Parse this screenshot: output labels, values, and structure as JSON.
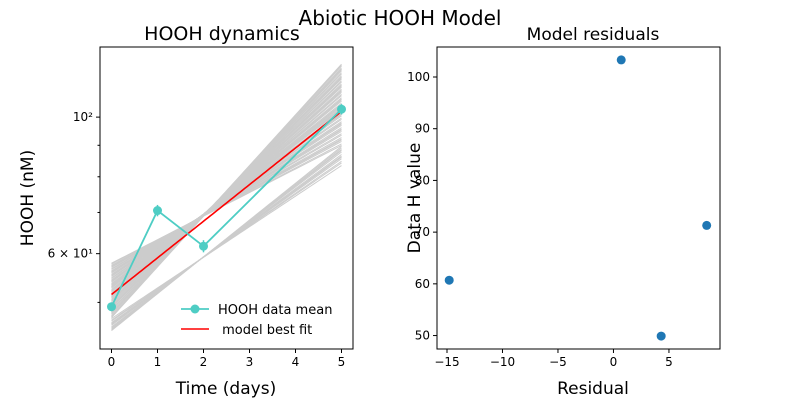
{
  "figure": {
    "suptitle": "Abiotic HOOH Model"
  },
  "colors": {
    "data": "#4ecdc4",
    "model": "#ff0000",
    "ensemble": "#cccccc",
    "residual_points": "#1f77b4"
  },
  "chart_data": [
    {
      "type": "line",
      "title": "HOOH dynamics",
      "xlabel": "Time (days)",
      "ylabel": "HOOH (nM)",
      "y_scale": "log",
      "xlim": [
        -0.25,
        5.25
      ],
      "ylim": [
        42,
        130
      ],
      "x_ticks": [
        0,
        1,
        2,
        3,
        4,
        5
      ],
      "x_tick_labels": [
        "0",
        "1",
        "2",
        "3",
        "4",
        "5"
      ],
      "y_tick_labels": [
        {
          "value": 60,
          "label": "6 × 10¹"
        },
        {
          "value": 100,
          "label": "10²"
        }
      ],
      "legend_position": "lower-right",
      "series": [
        {
          "name": "HOOH data mean",
          "style": "line-with-markers-and-error-bars",
          "x": [
            0,
            1,
            2,
            5
          ],
          "y": [
            49.2,
            70.5,
            61.7,
            103.0
          ],
          "error": [
            0.8,
            1.5,
            1.4,
            2.0
          ]
        },
        {
          "name": " model best fit",
          "style": "line",
          "start": 51.5,
          "rate": 0.137
        }
      ],
      "ensemble": {
        "style": "thin-lines",
        "start_range": [
          45.0,
          58.0
        ],
        "end_range": [
          83.0,
          122.0
        ]
      }
    },
    {
      "type": "scatter",
      "title": "Model residuals",
      "xlabel": "Residual",
      "ylabel": "Data H value",
      "xlim": [
        -15.9,
        9.6
      ],
      "ylim": [
        47.4,
        105.8
      ],
      "x_ticks": [
        -15,
        -10,
        -5,
        0,
        5
      ],
      "x_tick_labels": [
        "−15",
        "−10",
        "−5",
        "0",
        "5"
      ],
      "y_ticks": [
        50,
        60,
        70,
        80,
        90,
        100
      ],
      "y_tick_labels": [
        "50",
        "60",
        "70",
        "80",
        "90",
        "100"
      ],
      "points": [
        {
          "x": -14.8,
          "y": 60.7
        },
        {
          "x": 0.7,
          "y": 103.3
        },
        {
          "x": 4.3,
          "y": 49.9
        },
        {
          "x": 8.4,
          "y": 71.3
        }
      ]
    }
  ]
}
